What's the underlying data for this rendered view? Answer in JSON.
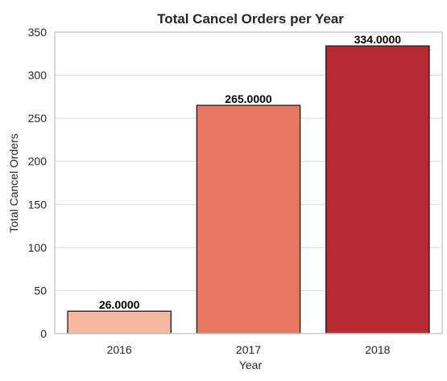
{
  "chart_data": {
    "type": "bar",
    "title": "Total Cancel Orders per Year",
    "xlabel": "Year",
    "ylabel": "Total Cancel Orders",
    "categories": [
      "2016",
      "2017",
      "2018"
    ],
    "values": [
      26,
      265,
      334
    ],
    "value_labels": [
      "26.0000",
      "265.0000",
      "334.0000"
    ],
    "ylim": [
      0,
      350
    ],
    "yticks": [
      0,
      50,
      100,
      150,
      200,
      250,
      300,
      350
    ],
    "grid": "horizontal",
    "colors": [
      "#f4b9a0",
      "#e77962",
      "#b82a31"
    ],
    "legend": "none"
  }
}
